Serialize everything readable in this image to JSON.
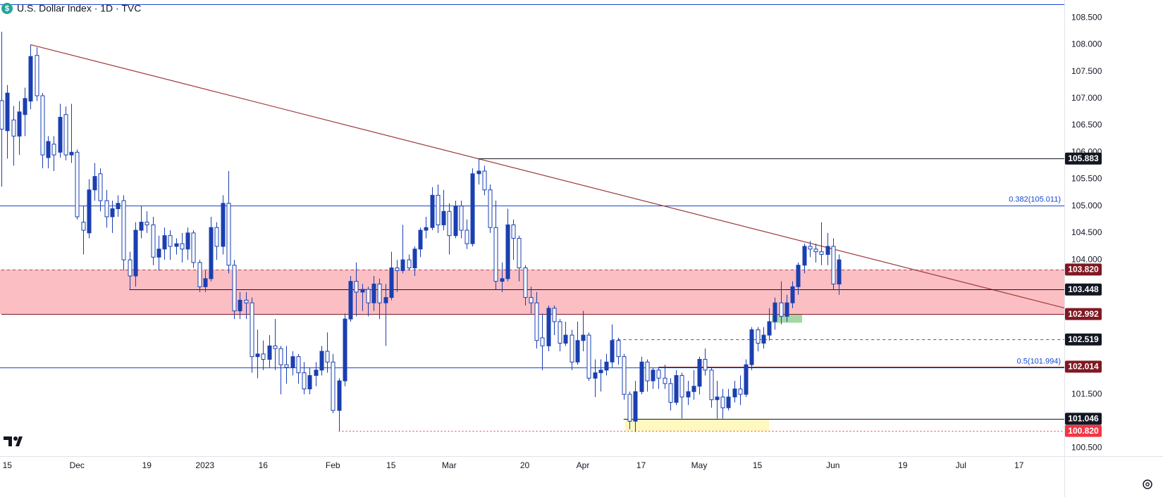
{
  "chart_data": {
    "type": "candlestick",
    "title": "U.S. Dollar Index · 1D · TVC",
    "categories": [
      null,
      "15",
      null,
      null,
      null,
      null,
      null,
      null,
      null,
      null,
      null,
      null,
      null,
      "Dec",
      null,
      null,
      null,
      null,
      null,
      null,
      null,
      null,
      null,
      null,
      null,
      "19",
      null,
      null,
      null,
      null,
      null,
      null,
      null,
      null,
      null,
      "2023",
      null,
      null,
      null,
      null,
      null,
      null,
      null,
      null,
      null,
      "16",
      null,
      null,
      null,
      null,
      null,
      null,
      null,
      null,
      null,
      null,
      null,
      "Feb",
      null,
      null,
      null,
      null,
      null,
      null,
      null,
      null,
      null,
      "15",
      null,
      null,
      null,
      null,
      null,
      null,
      null,
      null,
      null,
      "Mar",
      null,
      null,
      null,
      null,
      null,
      null,
      null,
      null,
      null,
      null,
      null,
      null,
      "20",
      null,
      null,
      null,
      null,
      null,
      null,
      null,
      null,
      null,
      "Apr",
      null,
      null,
      null,
      null,
      null,
      null,
      null,
      null,
      null,
      "17",
      null,
      null,
      null,
      null,
      null,
      null,
      null,
      null,
      null,
      "May",
      null,
      null,
      null,
      null,
      null,
      null,
      null,
      null,
      null,
      "15",
      null,
      null,
      null,
      null,
      null,
      null,
      null,
      null,
      null,
      null,
      null,
      null,
      "Jun",
      null,
      null,
      null,
      null,
      null,
      null,
      null,
      null,
      null,
      null,
      null,
      "19",
      null,
      null,
      null,
      null,
      null,
      null,
      null,
      null,
      null,
      "Jul",
      null,
      null,
      null,
      null,
      null,
      null,
      null,
      null,
      null,
      "17"
    ],
    "open": [
      106.96,
      106.4,
      106.6,
      106.3,
      106.7,
      106.95,
      107.8,
      107.05,
      105.9,
      106.15,
      106.0,
      106.7,
      105.95,
      106.0,
      104.7,
      104.5,
      105.3,
      105.6,
      105.1,
      104.8,
      104.95,
      105.1,
      104.0,
      103.7,
      104.55,
      104.7,
      104.65,
      104.05,
      104.2,
      104.45,
      104.25,
      104.3,
      104.2,
      104.5,
      103.95,
      103.5,
      103.65,
      104.6,
      104.25,
      105.05,
      103.9,
      103.05,
      103.25,
      103.2,
      102.2,
      102.25,
      102.15,
      102.4,
      102.35,
      102.05,
      102.0,
      102.2,
      101.9,
      101.6,
      101.85,
      101.95,
      102.3,
      102.1,
      101.2,
      101.75,
      102.9,
      103.6,
      103.4,
      103.45,
      103.2,
      103.55,
      103.2,
      103.3,
      103.85,
      103.8,
      104.0,
      103.85,
      104.2,
      104.55,
      104.6,
      105.2,
      104.65,
      104.9,
      104.45,
      105.0,
      104.55,
      104.3,
      105.6,
      105.65,
      105.3,
      104.6,
      103.6,
      103.65,
      104.65,
      104.4,
      103.85,
      103.3,
      103.2,
      102.55,
      102.4,
      103.1,
      102.85,
      102.45,
      102.6,
      102.1,
      102.5,
      102.6,
      101.8,
      101.9,
      101.95,
      102.1,
      102.5,
      102.2,
      101.5,
      101.0,
      101.55,
      102.1,
      101.75,
      101.95,
      101.8,
      101.7,
      101.35,
      101.85,
      101.45,
      101.55,
      101.65,
      102.15,
      101.95,
      101.4,
      101.45,
      101.25,
      101.45,
      101.6,
      101.5,
      102.05,
      102.7,
      102.45,
      102.6,
      102.85,
      103.2,
      102.95,
      103.2,
      103.5,
      103.9,
      104.25,
      104.2,
      104.15,
      104.1,
      104.25,
      103.55,
      null,
      null,
      null,
      null,
      null,
      null,
      null,
      null,
      null,
      null,
      null,
      null,
      null,
      null,
      null,
      null,
      null,
      null,
      null,
      null,
      null,
      null,
      null,
      null,
      null,
      null,
      null,
      null,
      null,
      null,
      null
    ],
    "high": [
      108.24,
      107.25,
      106.86,
      106.95,
      107.2,
      108.0,
      107.95,
      107.1,
      106.3,
      106.3,
      106.9,
      106.85,
      106.9,
      106.05,
      105.0,
      105.5,
      105.8,
      105.7,
      105.3,
      105.1,
      105.2,
      105.2,
      104.15,
      104.7,
      105.0,
      104.9,
      104.8,
      104.45,
      104.6,
      104.55,
      104.4,
      104.5,
      104.6,
      104.55,
      104.0,
      103.8,
      104.8,
      104.7,
      105.2,
      105.65,
      104.0,
      103.4,
      103.4,
      103.3,
      102.7,
      102.5,
      102.6,
      102.9,
      102.4,
      102.4,
      102.3,
      102.25,
      102.1,
      102.0,
      102.1,
      102.4,
      102.65,
      102.25,
      101.8,
      103.0,
      103.7,
      103.95,
      103.55,
      103.5,
      103.7,
      103.65,
      103.55,
      104.15,
      104.0,
      104.65,
      104.1,
      104.25,
      104.6,
      104.8,
      105.35,
      105.4,
      105.3,
      105.05,
      105.1,
      105.1,
      104.75,
      105.7,
      105.88,
      105.75,
      105.4,
      105.1,
      103.95,
      104.95,
      104.75,
      104.45,
      103.9,
      103.5,
      103.4,
      103.0,
      103.15,
      103.15,
      102.9,
      102.85,
      102.7,
      102.85,
      103.05,
      102.65,
      102.15,
      102.15,
      102.25,
      102.8,
      102.55,
      102.25,
      101.55,
      101.75,
      102.2,
      102.15,
      102.0,
      102.0,
      102.05,
      101.8,
      101.95,
      101.9,
      101.75,
      101.95,
      102.2,
      102.35,
      102.0,
      101.75,
      101.6,
      101.6,
      101.75,
      101.85,
      102.15,
      102.75,
      102.75,
      102.75,
      103.1,
      103.3,
      103.6,
      103.35,
      103.6,
      103.95,
      104.3,
      104.35,
      104.3,
      104.7,
      104.5,
      104.4,
      104.1,
      null,
      null,
      null,
      null,
      null,
      null,
      null,
      null,
      null,
      null,
      null,
      null,
      null,
      null,
      null,
      null,
      null,
      null,
      null,
      null,
      null,
      null,
      null,
      null,
      null,
      null,
      null,
      null,
      null,
      null,
      null
    ],
    "low": [
      105.36,
      105.88,
      105.75,
      105.95,
      106.3,
      106.8,
      106.95,
      105.7,
      105.7,
      105.65,
      105.9,
      105.85,
      105.8,
      104.75,
      104.1,
      104.4,
      105.1,
      104.9,
      104.6,
      104.5,
      104.8,
      103.8,
      103.45,
      103.5,
      104.4,
      104.5,
      103.9,
      103.8,
      104.0,
      104.0,
      104.1,
      103.95,
      104.0,
      103.85,
      103.4,
      103.4,
      103.6,
      104.0,
      104.1,
      103.75,
      102.9,
      102.9,
      102.9,
      101.9,
      101.8,
      101.95,
      102.0,
      101.95,
      101.5,
      101.7,
      101.85,
      101.7,
      101.5,
      101.5,
      101.65,
      101.85,
      101.9,
      101.15,
      100.82,
      101.65,
      102.85,
      102.95,
      103.05,
      102.95,
      103.05,
      102.9,
      102.4,
      103.25,
      103.4,
      103.75,
      103.8,
      103.7,
      104.05,
      104.4,
      104.55,
      104.5,
      104.55,
      104.1,
      104.4,
      104.4,
      104.2,
      104.25,
      105.4,
      105.2,
      104.5,
      103.45,
      103.4,
      103.6,
      104.0,
      103.6,
      103.15,
      103.0,
      102.35,
      101.95,
      102.3,
      102.6,
      102.3,
      102.4,
      101.95,
      102.05,
      102.3,
      101.75,
      101.45,
      101.55,
      101.85,
      102.0,
      102.05,
      101.4,
      100.85,
      100.8,
      101.5,
      101.55,
      101.6,
      101.6,
      101.6,
      101.2,
      101.3,
      101.05,
      101.3,
      101.4,
      101.5,
      101.85,
      101.25,
      101.05,
      101.05,
      101.2,
      101.35,
      101.3,
      101.45,
      101.95,
      102.3,
      102.35,
      102.5,
      102.7,
      102.8,
      102.85,
      103.1,
      103.35,
      103.75,
      104.05,
      103.95,
      103.9,
      103.9,
      103.45,
      103.35,
      null,
      null,
      null,
      null,
      null,
      null,
      null,
      null,
      null,
      null,
      null,
      null,
      null,
      null,
      null,
      null,
      null,
      null,
      null,
      null,
      null,
      null,
      null,
      null,
      null,
      null,
      null,
      null,
      null,
      null,
      null
    ],
    "close": [
      106.43,
      107.1,
      106.3,
      106.75,
      107.0,
      107.78,
      107.05,
      105.95,
      106.2,
      105.95,
      106.65,
      105.95,
      106.0,
      104.8,
      104.55,
      105.3,
      105.55,
      105.1,
      104.8,
      104.95,
      105.05,
      104.0,
      103.7,
      104.55,
      104.7,
      104.65,
      104.05,
      104.2,
      104.45,
      104.25,
      104.3,
      104.2,
      104.5,
      103.95,
      103.5,
      103.65,
      104.6,
      104.25,
      105.05,
      103.9,
      103.05,
      103.25,
      103.2,
      102.2,
      102.25,
      102.15,
      102.4,
      102.35,
      102.05,
      102.0,
      102.2,
      101.9,
      101.6,
      101.85,
      101.95,
      102.3,
      102.1,
      101.2,
      101.75,
      102.9,
      103.6,
      103.4,
      103.45,
      103.2,
      103.55,
      103.2,
      103.3,
      103.85,
      103.8,
      104.0,
      103.85,
      104.2,
      104.55,
      104.6,
      105.2,
      104.65,
      104.9,
      104.45,
      105.0,
      104.55,
      104.3,
      105.6,
      105.65,
      105.3,
      104.6,
      103.6,
      103.65,
      104.65,
      104.4,
      103.85,
      103.3,
      103.2,
      102.5,
      102.4,
      103.1,
      102.85,
      102.45,
      102.6,
      102.1,
      102.5,
      102.6,
      101.8,
      101.9,
      101.95,
      102.1,
      102.5,
      102.2,
      101.5,
      101.0,
      101.55,
      102.1,
      101.75,
      101.95,
      101.8,
      101.7,
      101.35,
      101.85,
      101.45,
      101.55,
      101.65,
      102.15,
      101.95,
      101.4,
      101.45,
      101.25,
      101.45,
      101.6,
      101.5,
      102.05,
      102.7,
      102.45,
      102.6,
      102.85,
      103.2,
      102.95,
      103.2,
      103.5,
      103.9,
      104.25,
      104.2,
      104.15,
      104.1,
      104.25,
      103.55,
      104.0,
      null,
      null,
      null,
      null,
      null,
      null,
      null,
      null,
      null,
      null,
      null,
      null,
      null,
      null,
      null,
      null,
      null,
      null,
      null,
      null,
      null,
      null,
      null,
      null,
      null,
      null,
      null,
      null,
      null,
      null,
      null
    ],
    "up_color": "#1a3fb0",
    "down_color": "#ffffff",
    "wick_color": "#1a3fb0",
    "ylim": [
      100.35,
      108.83
    ],
    "yticks": [
      {
        "value": 108.5,
        "label": "108.500"
      },
      {
        "value": 108,
        "label": "108.000"
      },
      {
        "value": 107.5,
        "label": "107.500"
      },
      {
        "value": 107,
        "label": "107.000"
      },
      {
        "value": 106.5,
        "label": "106.500"
      },
      {
        "value": 106,
        "label": "106.000"
      },
      {
        "value": 105.5,
        "label": "105.500"
      },
      {
        "value": 105,
        "label": "105.000"
      },
      {
        "value": 104.5,
        "label": "104.500"
      },
      {
        "value": 104,
        "label": "104.000"
      },
      {
        "value": 101.5,
        "label": "101.500"
      },
      {
        "value": 100.5,
        "label": "100.500"
      }
    ],
    "trendline": {
      "x": [
        5,
        82
      ],
      "y": [
        108.0,
        105.88
      ],
      "color": "#9c3a3a"
    },
    "fib_color": "#1848cc",
    "fibs": [
      {
        "value": 108.75
      },
      {
        "value": 105.011,
        "label": "0.382(105.011)"
      },
      {
        "value": 101.994,
        "label": "0.5(101.994)"
      }
    ],
    "zones": [
      {
        "y": [
          102.992,
          103.82
        ],
        "color": "#f23645",
        "opacity": 0.32
      },
      {
        "x": [
          132.5,
          137.7
        ],
        "y": [
          102.83,
          102.992
        ],
        "color": "#4caf50",
        "opacity": 0.5
      },
      {
        "x": [
          107.2,
          132
        ],
        "y": [
          100.82,
          101.046
        ],
        "color": "#fff59d",
        "opacity": 0.65
      }
    ],
    "levels": [
      {
        "value": 105.883,
        "label": "105.883",
        "color": "#131722",
        "style": "solid",
        "from": 82
      },
      {
        "value": 103.82,
        "label": "103.820",
        "color": "#801922",
        "style": "dashed",
        "from": 0
      },
      {
        "value": 103.448,
        "label": "103.448",
        "color": "#131722",
        "style": "solid",
        "from": 22
      },
      {
        "value": 102.992,
        "label": "102.992",
        "color": "#801922",
        "style": "solid",
        "from": 0
      },
      {
        "value": 102.519,
        "label": "102.519",
        "color": "#131722",
        "style": "dashed",
        "from": 105
      },
      {
        "value": 102.014,
        "label": "102.014",
        "color": "#801922",
        "style": "solid",
        "from": 113
      },
      {
        "value": 101.046,
        "label": "101.046",
        "color": "#131722",
        "style": "solid",
        "from": 107
      },
      {
        "value": 100.82,
        "label": "100.820",
        "color": "#f23645",
        "style": "dotted",
        "from": 58
      }
    ]
  }
}
